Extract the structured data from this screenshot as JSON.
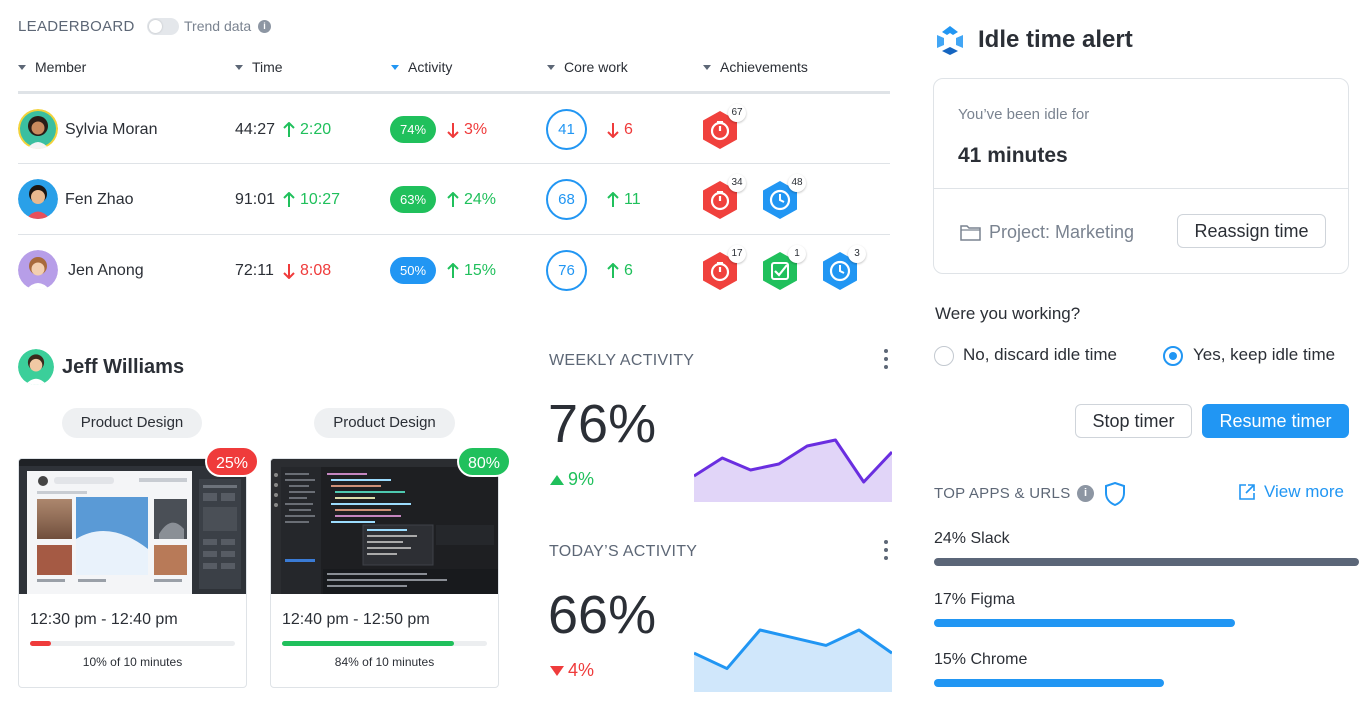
{
  "leaderboard": {
    "title": "LEADERBOARD",
    "trend_label": "Trend data",
    "trend_on": false,
    "columns": [
      "Member",
      "Time",
      "Activity",
      "Core work",
      "Achievements"
    ],
    "rows": [
      {
        "name": "Sylvia Moran",
        "time": "44:27",
        "time_delta": "2:20",
        "time_dir": "up",
        "activity": "74%",
        "activity_delta": "3%",
        "activity_dir": "down",
        "activity_color": "#20c05c",
        "core": "41",
        "core_delta": "6",
        "core_dir": "down",
        "achievements": [
          {
            "icon": "timer-flame-icon",
            "count": "67",
            "color": "#f0413d"
          }
        ]
      },
      {
        "name": "Fen Zhao",
        "time": "91:01",
        "time_delta": "10:27",
        "time_dir": "up",
        "activity": "63%",
        "activity_delta": "24%",
        "activity_dir": "up",
        "activity_color": "#20c05c",
        "core": "68",
        "core_delta": "11",
        "core_dir": "up",
        "achievements": [
          {
            "icon": "timer-flame-icon",
            "count": "34",
            "color": "#f0413d"
          },
          {
            "icon": "clock-icon",
            "count": "48",
            "color": "#2196f3"
          }
        ]
      },
      {
        "name": "Jen Anong",
        "time": "72:11",
        "time_delta": "8:08",
        "time_dir": "down",
        "activity": "50%",
        "activity_delta": "15%",
        "activity_dir": "up",
        "activity_color": "#2196f3",
        "core": "76",
        "core_delta": "6",
        "core_dir": "up",
        "achievements": [
          {
            "icon": "timer-flame-icon",
            "count": "17",
            "color": "#f0413d"
          },
          {
            "icon": "check-icon",
            "count": "1",
            "color": "#20c05c"
          },
          {
            "icon": "clock-icon",
            "count": "3",
            "color": "#2196f3"
          }
        ]
      }
    ]
  },
  "member": {
    "name": "Jeff Williams",
    "screenshots": [
      {
        "project": "Product Design",
        "activity": "25%",
        "badge_color": "#ef3b3b",
        "time": "12:30 pm - 12:40 pm",
        "progress": 0.1,
        "progress_color": "#ef3b3b",
        "caption": "10% of 10 minutes"
      },
      {
        "project": "Product Design",
        "activity": "80%",
        "badge_color": "#20c05c",
        "time": "12:40 pm - 12:50 pm",
        "progress": 0.84,
        "progress_color": "#20c05c",
        "caption": "84% of 10 minutes"
      }
    ]
  },
  "weekly": {
    "title": "WEEKLY ACTIVITY",
    "value": "76%",
    "delta": "9%",
    "dir": "up",
    "color": "#6a2ee0",
    "fill": "#c9b3f2",
    "trend": [
      3,
      6,
      4,
      5,
      8,
      9,
      2,
      7
    ]
  },
  "today": {
    "title": "TODAY’S ACTIVITY",
    "value": "66%",
    "delta": "4%",
    "dir": "down",
    "color": "#2196f3",
    "fill": "#a9d3f7",
    "trend": [
      4,
      2,
      7,
      6,
      5,
      7,
      4
    ]
  },
  "idle": {
    "title": "Idle time alert",
    "label": "You’ve been idle for",
    "minutes": "41 minutes",
    "project": "Project: Marketing",
    "reassign": "Reassign time",
    "question": "Were you working?",
    "option_no": "No, discard idle time",
    "option_yes": "Yes, keep idle time",
    "selected": "yes",
    "stop": "Stop timer",
    "resume": "Resume timer"
  },
  "top_apps": {
    "title": "TOP APPS & URLS",
    "view_more": "View more",
    "items": [
      {
        "label": "24% Slack",
        "share": 0.24,
        "color": "#5b6678"
      },
      {
        "label": "17% Figma",
        "share": 0.17,
        "color": "#2196f3"
      },
      {
        "label": "15% Chrome",
        "share": 0.15,
        "color": "#2196f3"
      }
    ]
  }
}
